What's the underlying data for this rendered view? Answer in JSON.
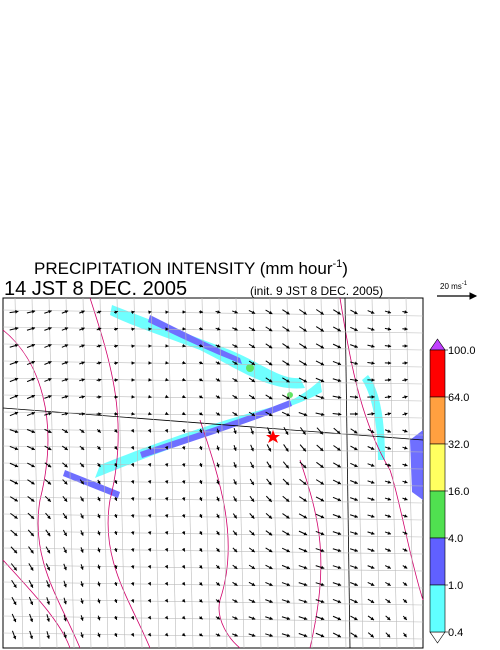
{
  "title": {
    "main": "PRECIPITATION INTENSITY (mm hour",
    "sup": "-1",
    "end": ")"
  },
  "valid_time": "14 JST 8 DEC. 2005",
  "init_time": "(init. 9 JST 8 DEC. 2005)",
  "vector_scale": {
    "main": "20 ms",
    "sup": "-1"
  },
  "colorbar": {
    "levels": [
      {
        "value": 100,
        "label": "100.0"
      },
      {
        "value": 64,
        "label": "64.0"
      },
      {
        "value": 32,
        "label": "32.0"
      },
      {
        "value": 16,
        "label": "16.0"
      },
      {
        "value": 4,
        "label": "4.0"
      },
      {
        "value": 1,
        "label": "1.0"
      },
      {
        "value": 0.4,
        "label": "0.4"
      }
    ],
    "colors": [
      "#ff0000",
      "#ffa040",
      "#ffff60",
      "#50e050",
      "#6060ff",
      "#60ffff"
    ],
    "over_color": "#c040ff",
    "under_color": "#ffffff"
  }
}
